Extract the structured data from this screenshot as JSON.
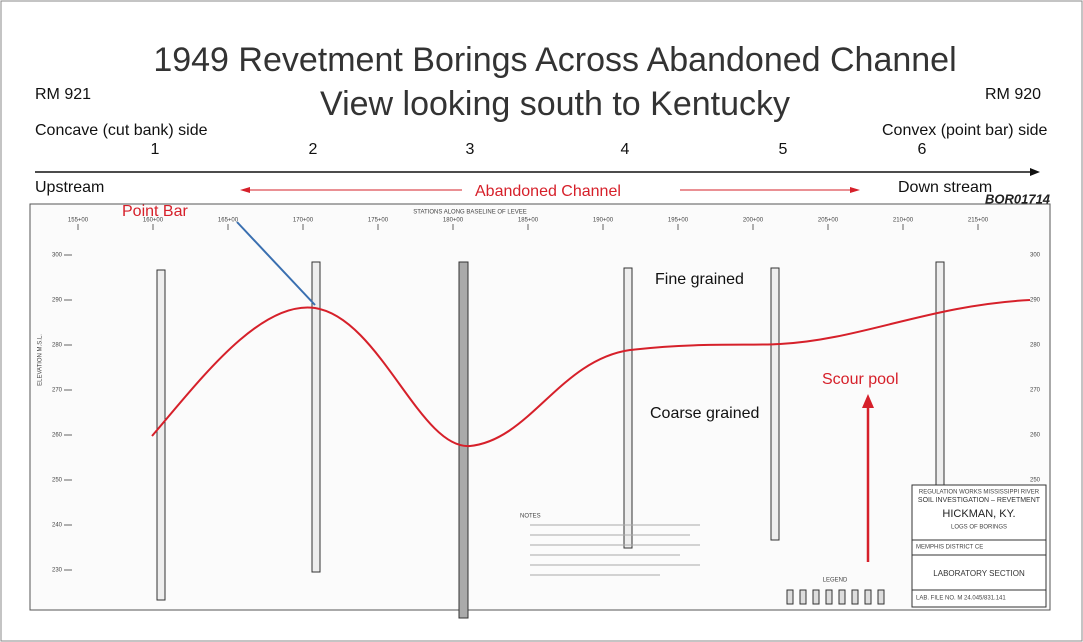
{
  "slide": {
    "title": "1949 Revetment Borings Across Abandoned Channel",
    "subtitle": "View looking south to Kentucky",
    "left_mile": "RM 921",
    "right_mile": "RM 920",
    "left_side": "Concave (cut bank) side",
    "right_side": "Convex (point bar) side",
    "borings": [
      "1",
      "2",
      "3",
      "4",
      "5",
      "6"
    ],
    "upstream": "Upstream",
    "channel": "Abandoned Channel",
    "downstream": "Down stream",
    "doc_id": "BOR01714"
  },
  "annotations": {
    "point_bar": "Point Bar",
    "fine": "Fine grained",
    "coarse": "Coarse grained",
    "scour": "Scour pool"
  },
  "drawing": {
    "stations_header": "STATIONS ALONG BASELINE OF LEVEE",
    "stations": [
      "155+00",
      "160+00",
      "165+00",
      "170+00",
      "175+00",
      "180+00",
      "185+00",
      "190+00",
      "195+00",
      "200+00",
      "205+00",
      "210+00",
      "215+00"
    ],
    "elevations": [
      "300",
      "290",
      "280",
      "270",
      "260",
      "250",
      "240",
      "230"
    ],
    "elevation_axis": "ELEVATION M.S.L.",
    "notes_title": "NOTES",
    "legend_title": "LEGEND",
    "title_block": {
      "agency": "REGULATION WORKS   MISSISSIPPI RIVER",
      "project": "SOIL INVESTIGATION – REVETMENT",
      "place": "HICKMAN, KY.",
      "sheet": "LOGS OF BORINGS",
      "district": "MEMPHIS DISTRICT CE",
      "section": "LABORATORY SECTION",
      "file": "LAB. FILE NO. M 24.045/831.141"
    }
  }
}
